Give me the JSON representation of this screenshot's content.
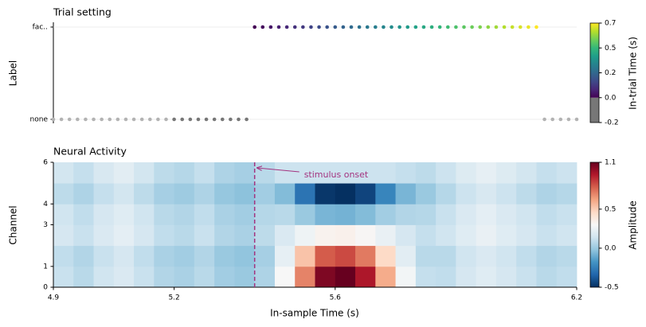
{
  "chart_data": [
    {
      "type": "scatter",
      "title": "Trial setting",
      "ylabel": "Label",
      "categories": [
        "none",
        "fac.."
      ],
      "x": [
        4.9,
        4.92,
        4.94,
        4.96,
        4.98,
        5.0,
        5.02,
        5.04,
        5.06,
        5.08,
        5.1,
        5.12,
        5.14,
        5.16,
        5.18,
        5.2,
        5.22,
        5.24,
        5.26,
        5.28,
        5.3,
        5.32,
        5.34,
        5.36,
        5.38,
        5.4,
        5.42,
        5.44,
        5.46,
        5.48,
        5.5,
        5.52,
        5.54,
        5.56,
        5.58,
        5.6,
        5.62,
        5.64,
        5.66,
        5.68,
        5.7,
        5.72,
        5.74,
        5.76,
        5.78,
        5.8,
        5.82,
        5.84,
        5.86,
        5.88,
        5.9,
        5.92,
        5.94,
        5.96,
        5.98,
        6.0,
        6.02,
        6.04,
        6.06,
        6.08,
        6.1,
        6.12,
        6.14,
        6.16,
        6.18,
        6.2
      ],
      "labels": [
        "none",
        "none",
        "none",
        "none",
        "none",
        "none",
        "none",
        "none",
        "none",
        "none",
        "none",
        "none",
        "none",
        "none",
        "none",
        "none",
        "none",
        "none",
        "none",
        "none",
        "none",
        "none",
        "none",
        "none",
        "none",
        "fac..",
        "fac..",
        "fac..",
        "fac..",
        "fac..",
        "fac..",
        "fac..",
        "fac..",
        "fac..",
        "fac..",
        "fac..",
        "fac..",
        "fac..",
        "fac..",
        "fac..",
        "fac..",
        "fac..",
        "fac..",
        "fac..",
        "fac..",
        "fac..",
        "fac..",
        "fac..",
        "fac..",
        "fac..",
        "fac..",
        "fac..",
        "fac..",
        "fac..",
        "fac..",
        "fac..",
        "fac..",
        "fac..",
        "fac..",
        "fac..",
        "fac..",
        "none",
        "none",
        "none",
        "none",
        "none"
      ],
      "values": [
        null,
        null,
        null,
        null,
        null,
        null,
        null,
        null,
        null,
        null,
        null,
        null,
        null,
        null,
        null,
        -0.2,
        -0.18,
        -0.16,
        -0.14,
        -0.12,
        -0.1,
        -0.08,
        -0.06,
        -0.04,
        -0.02,
        0,
        0.02,
        0.04,
        0.06,
        0.08,
        0.1,
        0.12,
        0.14,
        0.16,
        0.18,
        0.2,
        0.22,
        0.24,
        0.26,
        0.28,
        0.3,
        0.32,
        0.34,
        0.36,
        0.38,
        0.4,
        0.42,
        0.44,
        0.46,
        0.48,
        0.5,
        0.52,
        0.54,
        0.56,
        0.58,
        0.6,
        0.62,
        0.64,
        0.66,
        0.68,
        0.7,
        null,
        null,
        null,
        null,
        null
      ],
      "xlim": [
        4.9,
        6.2
      ],
      "null_color": "#b3b3b3",
      "grid": true,
      "colorbar": {
        "label": "In-trial Time (s)",
        "lim": [
          -0.2,
          0.7
        ],
        "norm": [
          0,
          0.7
        ],
        "colormap": "viridis",
        "under_color": "#777777",
        "ticks": [
          -0.2,
          {
            "value": 0,
            "label": "0.0"
          },
          0.2,
          0.5,
          0.7
        ]
      }
    },
    {
      "type": "heatmap",
      "title": "Neural Activity",
      "xlabel": "In-sample Time (s)",
      "ylabel": "Channel",
      "xlim": [
        4.9,
        6.2
      ],
      "xticks": [
        4.9,
        5.2,
        5.6,
        6.2
      ],
      "ylim": [
        0,
        6
      ],
      "yticks": [
        0,
        1,
        3,
        4,
        6
      ],
      "bins": [
        4.9,
        4.95,
        5.0,
        5.05,
        5.1,
        5.15,
        5.2,
        5.25,
        5.3,
        5.35,
        5.4,
        5.45,
        5.5,
        5.55,
        5.6,
        5.65,
        5.7,
        5.75,
        5.8,
        5.85,
        5.9,
        5.95,
        6.0,
        6.05,
        6.1,
        6.15,
        6.2
      ],
      "z": [
        [
          0.12,
          0.08,
          0.14,
          0.18,
          0.12,
          0.06,
          0.04,
          0.08,
          0.02,
          0.0,
          0.05,
          0.3,
          0.7,
          1.05,
          1.1,
          0.95,
          0.6,
          0.28,
          0.11,
          0.1,
          0.16,
          0.2,
          0.16,
          0.12,
          0.08,
          0.1
        ],
        [
          0.1,
          0.06,
          0.12,
          0.16,
          0.1,
          0.04,
          0.02,
          0.06,
          0.0,
          -0.02,
          0.03,
          0.23,
          0.53,
          0.79,
          0.83,
          0.72,
          0.46,
          0.21,
          0.08,
          0.08,
          0.14,
          0.18,
          0.14,
          0.1,
          0.06,
          0.08
        ],
        [
          0.16,
          0.12,
          0.18,
          0.22,
          0.16,
          0.1,
          0.08,
          0.12,
          0.06,
          0.04,
          0.09,
          0.18,
          0.26,
          0.33,
          0.34,
          0.31,
          0.24,
          0.16,
          0.11,
          0.14,
          0.2,
          0.24,
          0.2,
          0.16,
          0.12,
          0.14
        ],
        [
          0.14,
          0.1,
          0.16,
          0.2,
          0.14,
          0.08,
          0.06,
          0.1,
          0.04,
          0.02,
          0.07,
          0.08,
          0.0,
          -0.07,
          -0.08,
          -0.05,
          0.02,
          0.06,
          0.07,
          0.12,
          0.18,
          0.22,
          0.18,
          0.14,
          0.1,
          0.12
        ],
        [
          0.09,
          0.05,
          0.11,
          0.15,
          0.09,
          0.03,
          0.01,
          0.05,
          -0.01,
          -0.03,
          0.02,
          -0.05,
          -0.29,
          -0.48,
          -0.5,
          -0.44,
          -0.23,
          -0.07,
          0.0,
          0.07,
          0.13,
          0.17,
          0.13,
          0.09,
          0.05,
          0.07
        ],
        [
          0.15,
          0.11,
          0.17,
          0.21,
          0.15,
          0.09,
          0.07,
          0.11,
          0.05,
          0.03,
          0.08,
          0.13,
          0.13,
          0.13,
          0.13,
          0.13,
          0.13,
          0.11,
          0.09,
          0.13,
          0.19,
          0.23,
          0.19,
          0.15,
          0.11,
          0.13
        ]
      ],
      "annotation": {
        "x": 5.4,
        "label": "stimulus onset",
        "color": "#a3337f"
      },
      "colorbar": {
        "label": "Amplitude",
        "lim": [
          -0.5,
          1.1
        ],
        "colormap": "RdBu_r",
        "ticks": [
          -0.5,
          {
            "value": 0,
            "label": "0.0"
          },
          0.5,
          1.1
        ]
      }
    }
  ]
}
